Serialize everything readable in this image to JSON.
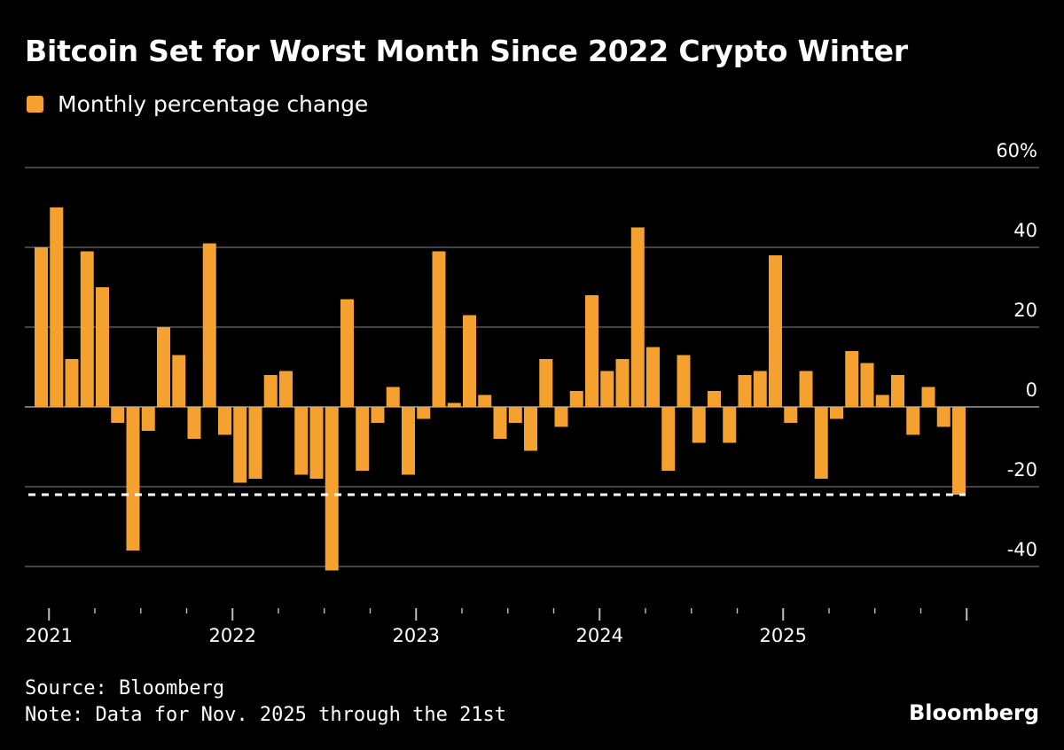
{
  "header": {
    "title": "Bitcoin Set for Worst Month Since 2022 Crypto Winter"
  },
  "legend": {
    "label": "Monthly percentage change"
  },
  "footer": {
    "source": "Source: Bloomberg",
    "note": "Note: Data for Nov. 2025 through the 21st",
    "brand": "Bloomberg"
  },
  "colors": {
    "background": "#000000",
    "bar": "#F5A130",
    "grid": "#6b6b6b",
    "text": "#ffffff",
    "reference_line": "#ffffff"
  },
  "chart_data": {
    "type": "bar",
    "title": "Bitcoin Set for Worst Month Since 2022 Crypto Winter",
    "xlabel": "",
    "ylabel": "",
    "ylim": [
      -48,
      60
    ],
    "yticks": [
      {
        "value": 60,
        "label": "60%"
      },
      {
        "value": 40,
        "label": "40"
      },
      {
        "value": 20,
        "label": "20"
      },
      {
        "value": 0,
        "label": "0"
      },
      {
        "value": -20,
        "label": "-20"
      },
      {
        "value": -40,
        "label": "-40"
      }
    ],
    "year_labels": [
      "2021",
      "2022",
      "2023",
      "2024",
      "2025"
    ],
    "grid": true,
    "axis_position": "right",
    "legend_position": "top-left",
    "reference_line": {
      "value": -22,
      "style": "dashed"
    },
    "series": [
      {
        "name": "Monthly percentage change",
        "values": [
          40,
          50,
          12,
          39,
          30,
          -4,
          -36,
          -6,
          20,
          13,
          -8,
          41,
          -7,
          -19,
          -18,
          8,
          9,
          -17,
          -18,
          -41,
          27,
          -16,
          -4,
          5,
          -17,
          -3,
          39,
          1,
          23,
          3,
          -8,
          -4,
          -11,
          12,
          -5,
          4,
          28,
          9,
          12,
          45,
          15,
          -16,
          13,
          -9,
          4,
          -9,
          8,
          9,
          38,
          -4,
          9,
          -18,
          -3,
          14,
          11,
          3,
          8,
          -7,
          5,
          -5,
          -22
        ]
      }
    ]
  }
}
